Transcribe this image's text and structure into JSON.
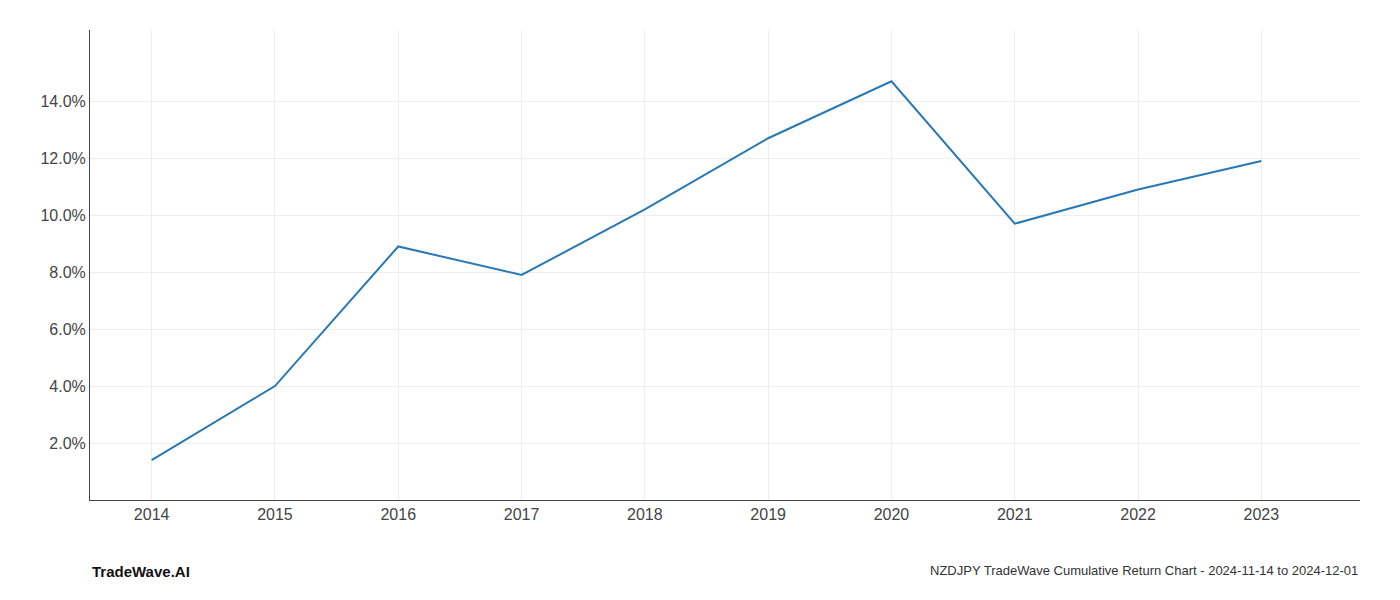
{
  "chart_data": {
    "type": "line",
    "title": "NZDJPY TradeWave Cumulative Return Chart - 2024-11-14 to 2024-12-01",
    "annotations": [
      "TradeWave.AI"
    ],
    "x": [
      2014,
      2015,
      2016,
      2017,
      2018,
      2019,
      2020,
      2021,
      2022,
      2023
    ],
    "values": [
      1.4,
      4.0,
      8.9,
      7.9,
      10.2,
      12.7,
      14.7,
      9.7,
      10.9,
      11.9
    ],
    "color": "#2878b5",
    "xlim": [
      2013.5,
      2023.8
    ],
    "xticks": [
      2014,
      2015,
      2016,
      2017,
      2018,
      2019,
      2020,
      2021,
      2022,
      2023
    ],
    "ylim": [
      0,
      16.5
    ],
    "yticks": [
      {
        "value": 2.0,
        "label": "2.0%"
      },
      {
        "value": 4.0,
        "label": "4.0%"
      },
      {
        "value": 6.0,
        "label": "6.0%"
      },
      {
        "value": 8.0,
        "label": "8.0%"
      },
      {
        "value": 10.0,
        "label": "10.0%"
      },
      {
        "value": 12.0,
        "label": "12.0%"
      },
      {
        "value": 14.0,
        "label": "14.0%"
      }
    ],
    "grid": true
  }
}
